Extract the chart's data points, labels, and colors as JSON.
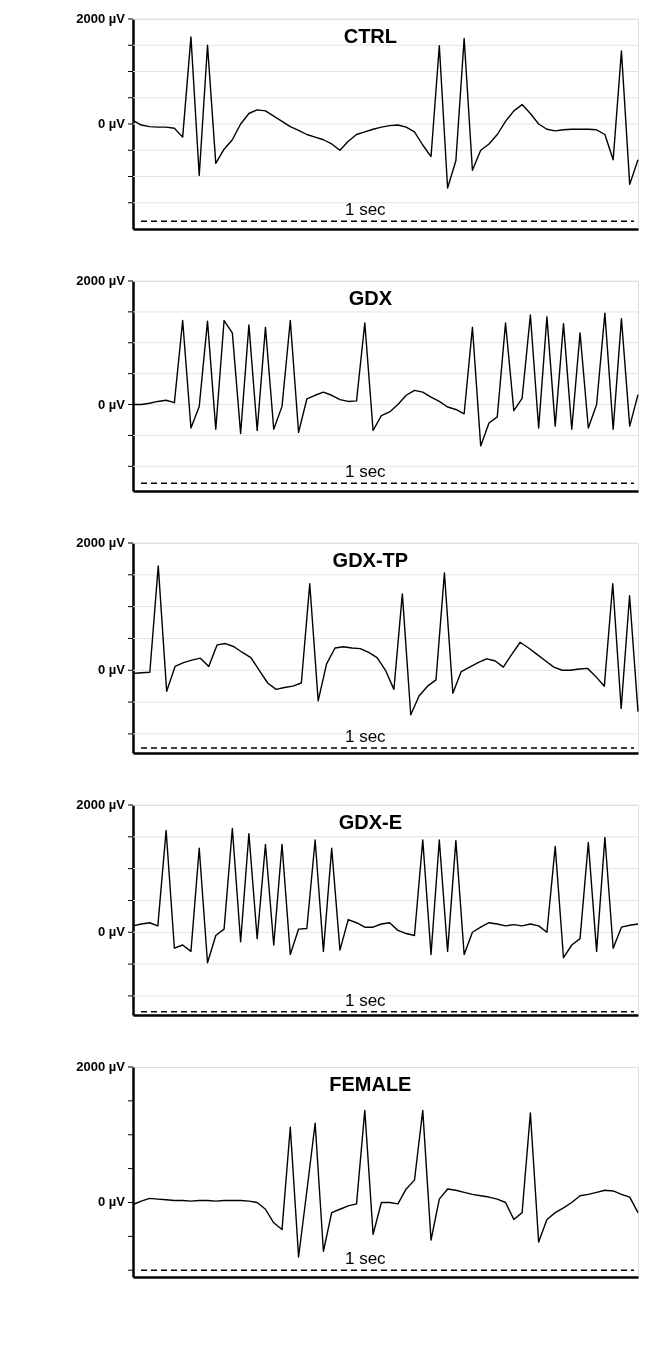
{
  "chart_data": [
    {
      "type": "line",
      "title": "CTRL",
      "ylim": [
        -2000,
        2000
      ],
      "yticks": [
        {
          "value": 2000,
          "label": "2000 µV"
        },
        {
          "value": 1500,
          "label": null
        },
        {
          "value": 1000,
          "label": null
        },
        {
          "value": 500,
          "label": null
        },
        {
          "value": 0,
          "label": "0 µV"
        },
        {
          "value": -500,
          "label": null
        },
        {
          "value": -1000,
          "label": null
        },
        {
          "value": -1500,
          "label": null
        }
      ],
      "grid": "y",
      "tick_labels": "y",
      "marker": "none",
      "line_style": "solid",
      "ref_lines": [
        {
          "axis": "y",
          "value": -1850,
          "label": "1 sec",
          "line_style": "dashed",
          "color": "#000000"
        }
      ],
      "categories": [
        null,
        null,
        null,
        null,
        null,
        null,
        null,
        null,
        null,
        null,
        null,
        null,
        null,
        null,
        null,
        null,
        null,
        null,
        null,
        null,
        null,
        null,
        null,
        null,
        null,
        null,
        null,
        null,
        null,
        null,
        null,
        null,
        null,
        null,
        null,
        null,
        null,
        null,
        null,
        null,
        null,
        null,
        null,
        null,
        null,
        null,
        null,
        null,
        null,
        null,
        null,
        null,
        null,
        null,
        null,
        null,
        null,
        null,
        null,
        null,
        null,
        null
      ],
      "series": [
        {
          "color": "#000000",
          "values": [
            70,
            -20,
            -50,
            -60,
            -60,
            -80,
            -250,
            1660,
            -980,
            1500,
            -750,
            -480,
            -300,
            0,
            200,
            270,
            250,
            150,
            50,
            -50,
            -120,
            -200,
            -250,
            -300,
            -380,
            -500,
            -330,
            -200,
            -150,
            -100,
            -60,
            -30,
            -20,
            -60,
            -150,
            -400,
            -620,
            1490,
            -1220,
            -700,
            1630,
            -880,
            -500,
            -380,
            -200,
            50,
            250,
            370,
            200,
            0,
            -100,
            -130,
            -110,
            -100,
            -100,
            -100,
            -110,
            -200,
            -680,
            1390,
            -1150,
            -680
          ]
        }
      ]
    },
    {
      "type": "line",
      "title": "GDX",
      "ylim": [
        -1400,
        2000
      ],
      "yticks": [
        {
          "value": 2000,
          "label": "2000 µV"
        },
        {
          "value": 1500,
          "label": null
        },
        {
          "value": 1000,
          "label": null
        },
        {
          "value": 500,
          "label": null
        },
        {
          "value": 0,
          "label": "0 µV"
        },
        {
          "value": -500,
          "label": null
        },
        {
          "value": -1000,
          "label": null
        }
      ],
      "grid": "y",
      "tick_labels": "y",
      "marker": "none",
      "line_style": "solid",
      "ref_lines": [
        {
          "axis": "y",
          "value": -1275,
          "label": "1 sec",
          "line_style": "dashed",
          "color": "#000000"
        }
      ],
      "categories": [
        null,
        null,
        null,
        null,
        null,
        null,
        null,
        null,
        null,
        null,
        null,
        null,
        null,
        null,
        null,
        null,
        null,
        null,
        null,
        null,
        null,
        null,
        null,
        null,
        null,
        null,
        null,
        null,
        null,
        null,
        null,
        null,
        null,
        null,
        null,
        null,
        null,
        null,
        null,
        null,
        null,
        null,
        null,
        null,
        null,
        null,
        null,
        null,
        null,
        null,
        null,
        null,
        null,
        null,
        null,
        null,
        null,
        null,
        null,
        null,
        null,
        null
      ],
      "series": [
        {
          "color": "#000000",
          "values": [
            0,
            0,
            20,
            50,
            70,
            30,
            1360,
            -380,
            -30,
            1350,
            -400,
            1360,
            1160,
            -470,
            1290,
            -420,
            1250,
            -400,
            -30,
            1360,
            -450,
            90,
            150,
            200,
            150,
            80,
            50,
            60,
            1320,
            -420,
            -180,
            -120,
            0,
            150,
            230,
            200,
            120,
            50,
            -40,
            -80,
            -150,
            1250,
            -670,
            -300,
            -200,
            1320,
            -100,
            100,
            1450,
            -380,
            1420,
            -350,
            1310,
            -400,
            1160,
            -380,
            0,
            1480,
            -400,
            1390,
            -350,
            160
          ]
        }
      ]
    },
    {
      "type": "line",
      "title": "GDX-TP",
      "ylim": [
        -1300,
        2000
      ],
      "yticks": [
        {
          "value": 2000,
          "label": "2000 µV"
        },
        {
          "value": 1500,
          "label": null
        },
        {
          "value": 1000,
          "label": null
        },
        {
          "value": 500,
          "label": null
        },
        {
          "value": 0,
          "label": "0 µV"
        },
        {
          "value": -500,
          "label": null
        },
        {
          "value": -1000,
          "label": null
        }
      ],
      "grid": "y",
      "tick_labels": "y",
      "marker": "none",
      "line_style": "solid",
      "ref_lines": [
        {
          "axis": "y",
          "value": -1220,
          "label": "1 sec",
          "line_style": "dashed",
          "color": "#000000"
        }
      ],
      "categories": [
        null,
        null,
        null,
        null,
        null,
        null,
        null,
        null,
        null,
        null,
        null,
        null,
        null,
        null,
        null,
        null,
        null,
        null,
        null,
        null,
        null,
        null,
        null,
        null,
        null,
        null,
        null,
        null,
        null,
        null,
        null,
        null,
        null,
        null,
        null,
        null,
        null,
        null,
        null,
        null,
        null,
        null,
        null,
        null,
        null,
        null,
        null,
        null,
        null,
        null,
        null,
        null,
        null,
        null,
        null,
        null,
        null,
        null,
        null,
        null,
        null
      ],
      "series": [
        {
          "color": "#000000",
          "values": [
            -50,
            -40,
            -30,
            1640,
            -330,
            60,
            120,
            160,
            190,
            60,
            400,
            420,
            370,
            280,
            200,
            0,
            -200,
            -300,
            -270,
            -250,
            -200,
            1360,
            -480,
            100,
            350,
            370,
            350,
            340,
            280,
            200,
            0,
            -300,
            1200,
            -700,
            -400,
            -250,
            -150,
            1530,
            -360,
            -20,
            50,
            120,
            180,
            150,
            50,
            250,
            440,
            350,
            250,
            150,
            50,
            0,
            0,
            20,
            30,
            -100,
            -250,
            1360,
            -600,
            1170,
            -650
          ]
        }
      ]
    },
    {
      "type": "line",
      "title": "GDX-E",
      "ylim": [
        -1300,
        2000
      ],
      "yticks": [
        {
          "value": 2000,
          "label": "2000 µV"
        },
        {
          "value": 1500,
          "label": null
        },
        {
          "value": 1000,
          "label": null
        },
        {
          "value": 500,
          "label": null
        },
        {
          "value": 0,
          "label": "0 µV"
        },
        {
          "value": -500,
          "label": null
        },
        {
          "value": -1000,
          "label": null
        }
      ],
      "grid": "y",
      "tick_labels": "y",
      "marker": "none",
      "line_style": "solid",
      "ref_lines": [
        {
          "axis": "y",
          "value": -1250,
          "label": "1 sec",
          "line_style": "dashed",
          "color": "#000000"
        }
      ],
      "categories": [
        null,
        null,
        null,
        null,
        null,
        null,
        null,
        null,
        null,
        null,
        null,
        null,
        null,
        null,
        null,
        null,
        null,
        null,
        null,
        null,
        null,
        null,
        null,
        null,
        null,
        null,
        null,
        null,
        null,
        null,
        null,
        null,
        null,
        null,
        null,
        null,
        null,
        null,
        null,
        null,
        null,
        null,
        null,
        null,
        null,
        null,
        null,
        null,
        null,
        null,
        null,
        null,
        null,
        null,
        null,
        null,
        null,
        null,
        null,
        null,
        null,
        null
      ],
      "series": [
        {
          "color": "#000000",
          "values": [
            100,
            130,
            150,
            100,
            1600,
            -250,
            -200,
            -300,
            1320,
            -480,
            -50,
            50,
            1630,
            -150,
            1550,
            -100,
            1380,
            -200,
            1380,
            -350,
            50,
            60,
            1450,
            -300,
            1320,
            -280,
            200,
            150,
            80,
            80,
            130,
            150,
            30,
            -20,
            -50,
            1450,
            -350,
            1450,
            -300,
            1440,
            -350,
            0,
            80,
            150,
            130,
            100,
            120,
            100,
            130,
            100,
            0,
            1350,
            -400,
            -200,
            -100,
            1410,
            -300,
            1490,
            -250,
            80,
            110,
            130
          ]
        }
      ]
    },
    {
      "type": "line",
      "title": "FEMALE",
      "ylim": [
        -1100,
        2000
      ],
      "yticks": [
        {
          "value": 2000,
          "label": "2000 µV"
        },
        {
          "value": 1500,
          "label": null
        },
        {
          "value": 1000,
          "label": null
        },
        {
          "value": 500,
          "label": null
        },
        {
          "value": 0,
          "label": "0 µV"
        },
        {
          "value": -500,
          "label": null
        },
        {
          "value": -1000,
          "label": null
        }
      ],
      "tick_labels": "y",
      "marker": "none",
      "line_style": "solid",
      "ref_lines": [
        {
          "axis": "y",
          "value": -1000,
          "label": "1 sec",
          "line_style": "dashed",
          "color": "#000000"
        }
      ],
      "categories": [
        null,
        null,
        null,
        null,
        null,
        null,
        null,
        null,
        null,
        null,
        null,
        null,
        null,
        null,
        null,
        null,
        null,
        null,
        null,
        null,
        null,
        null,
        null,
        null,
        null,
        null,
        null,
        null,
        null,
        null,
        null,
        null,
        null,
        null,
        null,
        null,
        null,
        null,
        null,
        null,
        null,
        null,
        null,
        null,
        null,
        null,
        null,
        null,
        null,
        null,
        null,
        null,
        null,
        null,
        null,
        null,
        null,
        null,
        null,
        null,
        null,
        null
      ],
      "series": [
        {
          "color": "#000000",
          "values": [
            -30,
            20,
            60,
            50,
            40,
            30,
            30,
            20,
            30,
            30,
            20,
            30,
            30,
            30,
            20,
            0,
            -100,
            -300,
            -400,
            1110,
            -805,
            170,
            1170,
            -720,
            -150,
            -100,
            -50,
            -20,
            1360,
            -470,
            0,
            0,
            -20,
            200,
            330,
            1360,
            -555,
            50,
            200,
            180,
            150,
            120,
            100,
            80,
            50,
            0,
            -250,
            -150,
            1320,
            -585,
            -250,
            -150,
            -80,
            0,
            100,
            120,
            150,
            180,
            170,
            120,
            80,
            -150
          ]
        }
      ]
    }
  ]
}
